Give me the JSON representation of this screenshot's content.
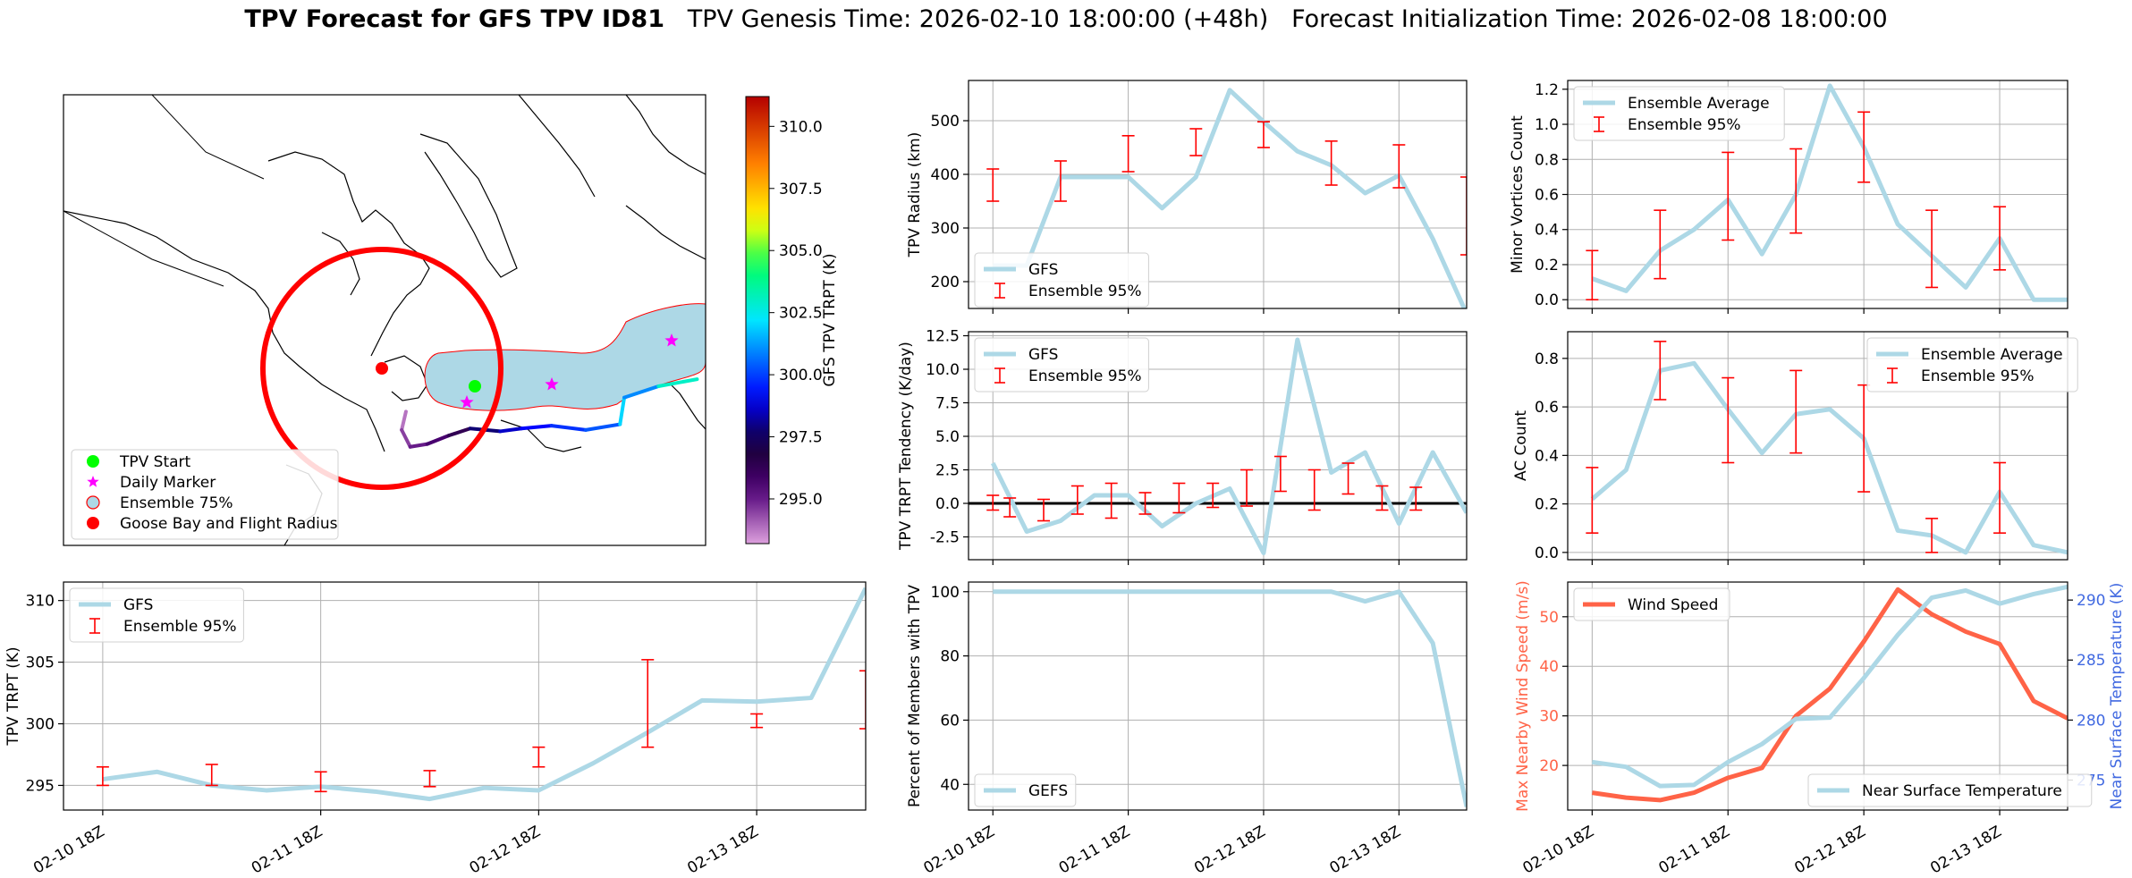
{
  "title": {
    "bold": "TPV Forecast for GFS TPV ID81",
    "genesis": "TPV Genesis Time: 2026-02-10 18:00:00 (+48h)",
    "init": "Forecast Initialization Time: 2026-02-08 18:00:00"
  },
  "time_ticks": [
    "02-10 18Z",
    "02-11 18Z",
    "02-12 18Z",
    "02-13 18Z"
  ],
  "colors": {
    "gfs_line": "#add8e6",
    "ensemble": "#ff0000",
    "wind": "#ff6347",
    "temp_axis": "#4169e1",
    "zero_line": "#000000"
  },
  "chart_data": [
    {
      "id": "map",
      "type": "map",
      "colorbar": {
        "label": "GFS TPV TRPT (K)",
        "ticks": [
          295.0,
          297.5,
          300.0,
          302.5,
          305.0,
          307.5,
          310.0
        ],
        "range": [
          293.2,
          311.2
        ]
      },
      "legend": [
        "TPV Start",
        "Daily Marker",
        "Ensemble 75%",
        "Goose Bay and Flight Radius"
      ],
      "legend_placement": "lower-left",
      "track": {
        "lon": [
          -52.0,
          -52.5,
          -51.5,
          -49.5,
          -47.0,
          -44.5,
          -41.0,
          -38.5,
          -35.0,
          -31.0,
          -27.0,
          -26.5,
          -22.5,
          -18.0
        ],
        "lat": [
          49.5,
          48.2,
          47.0,
          47.2,
          47.8,
          48.3,
          48.1,
          48.3,
          48.5,
          48.2,
          48.6,
          50.5,
          51.3,
          51.8
        ],
        "trpt": [
          294.0,
          293.8,
          294.5,
          295.0,
          295.6,
          296.3,
          297.8,
          298.6,
          299.2,
          299.8,
          300.3,
          302.0,
          301.0,
          303.0
        ]
      },
      "start": {
        "lon": -50.6,
        "lat": 49.1
      },
      "daily_markers": [
        {
          "lon": -51.8,
          "lat": 47.6
        },
        {
          "lon": -41.0,
          "lat": 48.9
        },
        {
          "lon": -27.0,
          "lat": 53.2
        }
      ],
      "goose_bay": {
        "lon": -60.4,
        "lat": 53.3,
        "radius_km": 1000
      }
    },
    {
      "id": "radius",
      "type": "line",
      "xlabel": "",
      "ylabel": "TPV Radius (km)",
      "ylim": [
        150,
        575
      ],
      "yticks": [
        200,
        300,
        400,
        500
      ],
      "legend_placement": "lower-left",
      "series": [
        {
          "name": "GFS",
          "x": [
            0,
            0.25,
            0.5,
            0.75,
            1,
            1.25,
            1.5,
            1.75,
            2,
            2.25,
            2.5,
            2.75,
            3,
            3.25,
            3.5
          ],
          "values": [
            230,
            230,
            395,
            395,
            395,
            337,
            395,
            557,
            498,
            443,
            417,
            365,
            398,
            280,
            140
          ]
        }
      ],
      "ensemble": {
        "name": "Ensemble 95%",
        "x": [
          0,
          0.5,
          1,
          1.5,
          2,
          2.5,
          3,
          3.5
        ],
        "low": [
          350,
          350,
          405,
          435,
          450,
          380,
          375,
          250
        ],
        "high": [
          410,
          425,
          472,
          485,
          498,
          462,
          455,
          395
        ]
      }
    },
    {
      "id": "minor_vortices",
      "type": "line",
      "xlabel": "",
      "ylabel": "Minor Vortices Count",
      "ylim": [
        -0.05,
        1.25
      ],
      "yticks": [
        0.0,
        0.2,
        0.4,
        0.6,
        0.8,
        1.0,
        1.2
      ],
      "legend_placement": "top-left",
      "series": [
        {
          "name": "Ensemble Average",
          "x": [
            0,
            0.25,
            0.5,
            0.75,
            1,
            1.25,
            1.5,
            1.75,
            2,
            2.25,
            2.5,
            2.75,
            3,
            3.25,
            3.5
          ],
          "values": [
            0.12,
            0.05,
            0.28,
            0.4,
            0.57,
            0.26,
            0.6,
            1.22,
            0.87,
            0.43,
            0.25,
            0.07,
            0.35,
            0.0,
            0.0
          ]
        }
      ],
      "ensemble": {
        "name": "Ensemble 95%",
        "x": [
          0,
          0.5,
          1,
          1.5,
          2,
          2.5,
          3
        ],
        "low": [
          0.0,
          0.12,
          0.34,
          0.38,
          0.67,
          0.07,
          0.17
        ],
        "high": [
          0.28,
          0.51,
          0.84,
          0.86,
          1.07,
          0.51,
          0.53
        ]
      }
    },
    {
      "id": "tendency",
      "type": "line",
      "xlabel": "",
      "ylabel": "TPV TRPT Tendency (K/day)",
      "ylim": [
        -4.2,
        12.8
      ],
      "yticks": [
        -2.5,
        0.0,
        2.5,
        5.0,
        7.5,
        10.0,
        12.5
      ],
      "legend_placement": "top-left",
      "series": [
        {
          "name": "GFS",
          "x": [
            0,
            0.25,
            0.5,
            0.75,
            1,
            1.25,
            1.5,
            1.75,
            2,
            2.25,
            2.5,
            2.75,
            3,
            3.25,
            3.5
          ],
          "values": [
            3.0,
            -2.1,
            -1.3,
            0.6,
            0.6,
            -1.7,
            0.0,
            1.1,
            -3.7,
            12.2,
            2.3,
            3.8,
            -1.5,
            3.8,
            -0.7
          ]
        }
      ],
      "ensemble": {
        "name": "Ensemble 95%",
        "x": [
          0,
          0.125,
          0.375,
          0.625,
          0.875,
          1.125,
          1.375,
          1.625,
          1.875,
          2.125,
          2.375,
          2.625,
          2.875,
          3.125
        ],
        "low": [
          -0.5,
          -1.0,
          -1.3,
          -0.8,
          -1.1,
          -0.8,
          -0.7,
          -0.3,
          -0.2,
          0.9,
          -0.5,
          0.7,
          -0.5,
          -0.5
        ],
        "high": [
          0.6,
          0.4,
          0.3,
          1.3,
          1.5,
          0.8,
          1.5,
          1.5,
          2.5,
          3.5,
          2.5,
          3.0,
          1.3,
          1.2
        ]
      },
      "hline": 0
    },
    {
      "id": "ac_count",
      "type": "line",
      "xlabel": "",
      "ylabel": "AC Count",
      "ylim": [
        -0.03,
        0.91
      ],
      "yticks": [
        0.0,
        0.2,
        0.4,
        0.6,
        0.8
      ],
      "legend_placement": "top-right",
      "series": [
        {
          "name": "Ensemble Average",
          "x": [
            0,
            0.25,
            0.5,
            0.75,
            1,
            1.25,
            1.5,
            1.75,
            2,
            2.25,
            2.5,
            2.75,
            3,
            3.25,
            3.5
          ],
          "values": [
            0.22,
            0.34,
            0.75,
            0.78,
            0.59,
            0.41,
            0.57,
            0.59,
            0.47,
            0.09,
            0.07,
            0.0,
            0.25,
            0.03,
            0.0
          ]
        }
      ],
      "ensemble": {
        "name": "Ensemble 95%",
        "x": [
          0,
          0.5,
          1,
          1.5,
          2,
          2.5,
          3
        ],
        "low": [
          0.08,
          0.63,
          0.37,
          0.41,
          0.25,
          0.0,
          0.08
        ],
        "high": [
          0.35,
          0.87,
          0.72,
          0.75,
          0.69,
          0.14,
          0.37
        ]
      }
    },
    {
      "id": "trpt",
      "type": "line",
      "xlabel": "",
      "ylabel": "TPV TRPT (K)",
      "ylim": [
        293.0,
        311.5
      ],
      "yticks": [
        295,
        300,
        305,
        310
      ],
      "legend_placement": "top-left",
      "series": [
        {
          "name": "GFS",
          "x": [
            0,
            0.25,
            0.5,
            0.75,
            1,
            1.25,
            1.5,
            1.75,
            2,
            2.25,
            2.5,
            2.75,
            3,
            3.25,
            3.5
          ],
          "values": [
            295.5,
            296.1,
            295.0,
            294.6,
            294.9,
            294.5,
            293.9,
            294.8,
            294.6,
            296.8,
            299.3,
            301.9,
            301.8,
            302.1,
            311.0
          ]
        }
      ],
      "ensemble": {
        "name": "Ensemble 95%",
        "x": [
          0,
          0.5,
          1,
          1.5,
          2,
          2.5,
          3,
          3.5
        ],
        "low": [
          295.0,
          295.0,
          294.5,
          294.9,
          296.5,
          298.1,
          299.7,
          299.6
        ],
        "high": [
          296.5,
          296.7,
          296.1,
          296.2,
          298.1,
          305.2,
          300.8,
          304.3
        ]
      }
    },
    {
      "id": "percent_members",
      "type": "line",
      "xlabel": "",
      "ylabel": "Percent of Members with TPV",
      "ylim": [
        32,
        103
      ],
      "yticks": [
        40,
        60,
        80,
        100
      ],
      "legend_placement": "bottom-left",
      "series": [
        {
          "name": "GEFS",
          "x": [
            0,
            0.25,
            0.5,
            0.75,
            1,
            1.25,
            1.5,
            1.75,
            2,
            2.25,
            2.5,
            2.75,
            3,
            3.25,
            3.5
          ],
          "values": [
            100,
            100,
            100,
            100,
            100,
            100,
            100,
            100,
            100,
            100,
            100,
            97,
            100,
            84,
            33
          ]
        }
      ]
    },
    {
      "id": "wind_temp",
      "type": "line",
      "xlabel": "",
      "ylabel": "Max Nearby Wind Speed (m/s)",
      "ylabel_right": "Near Surface Temperature (K)",
      "ylim": [
        11,
        57
      ],
      "yticks": [
        20,
        30,
        40,
        50
      ],
      "ylim_right": [
        272.5,
        291.5
      ],
      "yticks_right": [
        275,
        280,
        285,
        290
      ],
      "series": [
        {
          "name": "Wind Speed",
          "axis": "left",
          "legend_placement": "top-left",
          "x": [
            0,
            0.25,
            0.5,
            0.75,
            1,
            1.25,
            1.5,
            1.75,
            2,
            2.25,
            2.5,
            2.75,
            3,
            3.25,
            3.5
          ],
          "values": [
            14.5,
            13.5,
            13.0,
            14.5,
            17.5,
            19.5,
            30.0,
            35.5,
            45.0,
            55.5,
            50.5,
            47.0,
            44.5,
            33.0,
            29.5
          ]
        },
        {
          "name": "Near Surface Temperature",
          "axis": "right",
          "legend_placement": "bottom-right",
          "x": [
            0,
            0.25,
            0.5,
            0.75,
            1,
            1.25,
            1.5,
            1.75,
            2,
            2.25,
            2.5,
            2.75,
            3,
            3.25,
            3.5
          ],
          "values": [
            276.5,
            276.1,
            274.5,
            274.6,
            276.5,
            278.0,
            280.1,
            280.2,
            283.5,
            287.1,
            290.2,
            290.8,
            289.7,
            290.5,
            291.1
          ]
        }
      ]
    }
  ]
}
